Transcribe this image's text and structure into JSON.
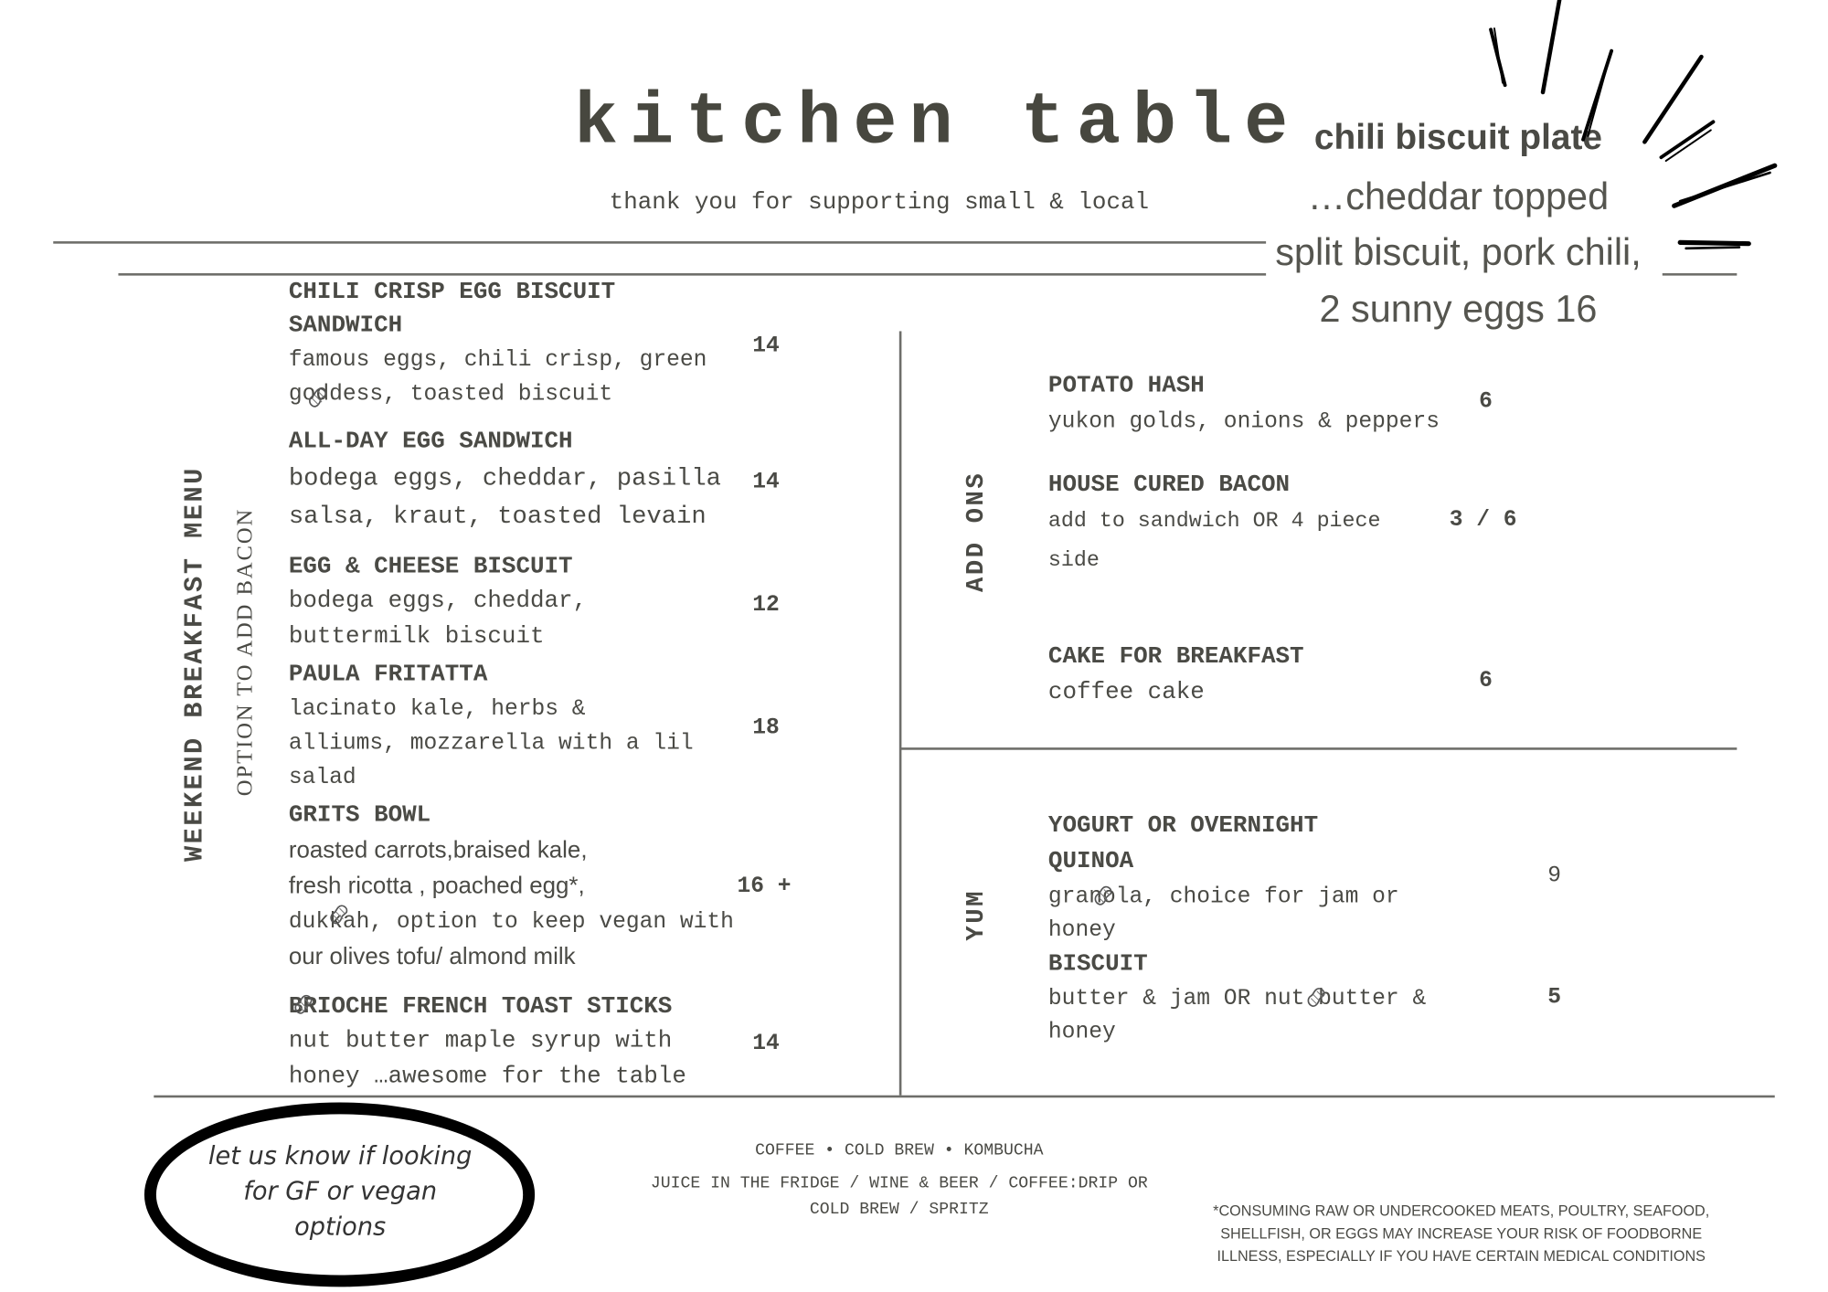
{
  "header": {
    "title": "kitchen table",
    "subtitle": "thank you for supporting small & local"
  },
  "special": {
    "title": "chili biscuit plate",
    "lines": [
      "…cheddar topped",
      "split biscuit, pork chili,",
      "2 sunny eggs  16"
    ]
  },
  "breakfast": {
    "section_label": "WEEKEND BREAKFAST MENU",
    "note": "OPTION TO ADD BACON",
    "items": [
      {
        "name_lines": [
          "CHILI CRISP EGG BISCUIT",
          "SANDWICH"
        ],
        "desc_lines": [
          "famous eggs, chili crisp, green",
          "goddess, toasted biscuit"
        ],
        "price": "14"
      },
      {
        "name_lines": [
          "ALL-DAY EGG SANDWICH"
        ],
        "desc_lines": [
          "bodega eggs, cheddar, pasilla",
          "salsa, kraut, toasted levain"
        ],
        "price": "14"
      },
      {
        "name_lines": [
          "EGG & CHEESE BISCUIT"
        ],
        "desc_lines": [
          "bodega eggs, cheddar,",
          "buttermilk biscuit"
        ],
        "price": "12"
      },
      {
        "name_lines": [
          "PAULA FRITATTA"
        ],
        "desc_lines": [
          "lacinato kale, herbs &",
          "alliums, mozzarella with a lil",
          "salad"
        ],
        "price": "18"
      },
      {
        "name_lines": [
          "GRITS BOWL"
        ],
        "desc_lines": [
          "roasted carrots,braised kale,",
          "fresh ricotta , poached egg*,",
          "dukkah, option to keep vegan with",
          "our olives tofu/ almond milk"
        ],
        "price": "16 +"
      },
      {
        "name_lines": [
          "BRIOCHE FRENCH TOAST STICKS"
        ],
        "desc_lines": [
          "nut butter maple syrup with",
          "honey …awesome for the table"
        ],
        "price": "14"
      }
    ]
  },
  "addons": {
    "section_label": "ADD ONS",
    "items": [
      {
        "name_lines": [
          "POTATO HASH"
        ],
        "desc_lines": [
          "yukon golds, onions & peppers"
        ],
        "price": "6"
      },
      {
        "name_lines": [
          "HOUSE CURED BACON"
        ],
        "desc_lines": [
          "add to sandwich OR 4 piece",
          "side"
        ],
        "price": "3 / 6"
      },
      {
        "name_lines": [
          "CAKE FOR BREAKFAST"
        ],
        "desc_lines": [
          "coffee cake"
        ],
        "price": "6"
      }
    ]
  },
  "yum": {
    "section_label": "YUM",
    "items": [
      {
        "name_lines": [
          "YOGURT OR OVERNIGHT",
          "QUINOA"
        ],
        "desc_lines": [
          "granola, choice for jam or",
          "honey"
        ],
        "price": "9"
      },
      {
        "name_lines": [
          "BISCUIT"
        ],
        "desc_lines": [
          "butter & jam OR nut butter &",
          "honey"
        ],
        "price": "5"
      }
    ]
  },
  "callout": {
    "lines": [
      "let us know if looking",
      "for GF or vegan",
      "options"
    ]
  },
  "drinks": {
    "lines": [
      "COFFEE • COLD BREW • KOMBUCHA",
      "JUICE IN THE FRIDGE / WINE & BEER / COFFEE:DRIP OR",
      "COLD BREW / SPRITZ"
    ]
  },
  "disclaimer": {
    "lines": [
      "*CONSUMING RAW OR UNDERCOOKED MEATS, POULTRY, SEAFOOD,",
      "SHELLFISH, OR EGGS MAY INCREASE YOUR RISK OF FOODBORNE",
      "ILLNESS, ESPECIALLY IF YOU HAVE CERTAIN MEDICAL CONDITIONS"
    ]
  },
  "icons": {
    "allergen": "peanut-icon",
    "burst": "sunburst-lines"
  },
  "colors": {
    "text": "#4a4a45",
    "rule": "#6e6e6a",
    "oval": "#000000"
  }
}
